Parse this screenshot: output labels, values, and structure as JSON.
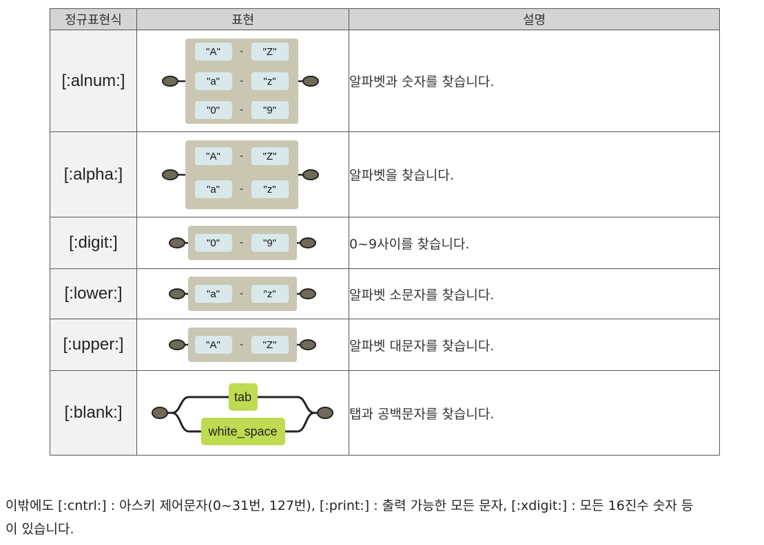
{
  "table": {
    "headers": [
      "정규표현식",
      "표현",
      "설명"
    ],
    "rows": [
      {
        "expr": "[:alnum:]",
        "ranges": [
          [
            "\"A\"",
            "\"Z\""
          ],
          [
            "\"a\"",
            "\"z\""
          ],
          [
            "\"0\"",
            "\"9\""
          ]
        ],
        "desc": "알파벳과 숫자를 찾습니다."
      },
      {
        "expr": "[:alpha:]",
        "ranges": [
          [
            "\"A\"",
            "\"Z\""
          ],
          [
            "\"a\"",
            "\"z\""
          ]
        ],
        "desc": "알파벳을 찾습니다."
      },
      {
        "expr": "[:digit:]",
        "ranges": [
          [
            "\"0\"",
            "\"9\""
          ]
        ],
        "desc": "0~9사이를 찾습니다."
      },
      {
        "expr": "[:lower:]",
        "ranges": [
          [
            "\"a\"",
            "\"z\""
          ]
        ],
        "desc": "알파벳 소문자를 찾습니다."
      },
      {
        "expr": "[:upper:]",
        "ranges": [
          [
            "\"A\"",
            "\"Z\""
          ]
        ],
        "desc": "알파벳 대문자를 찾습니다."
      },
      {
        "expr": "[:blank:]",
        "branches": [
          "tab",
          "white_space"
        ],
        "desc": "탭과 공백문자를 찾습니다."
      }
    ],
    "range_separator": "-"
  },
  "footer": {
    "line1": "이밖에도 [:cntrl:] : 아스키 제어문자(0~31번, 127번), [:print:] : 출력 가능한 모든 문자, [:xdigit:] : 모든 16진수 숫자 등",
    "line2": "이 있습니다."
  }
}
